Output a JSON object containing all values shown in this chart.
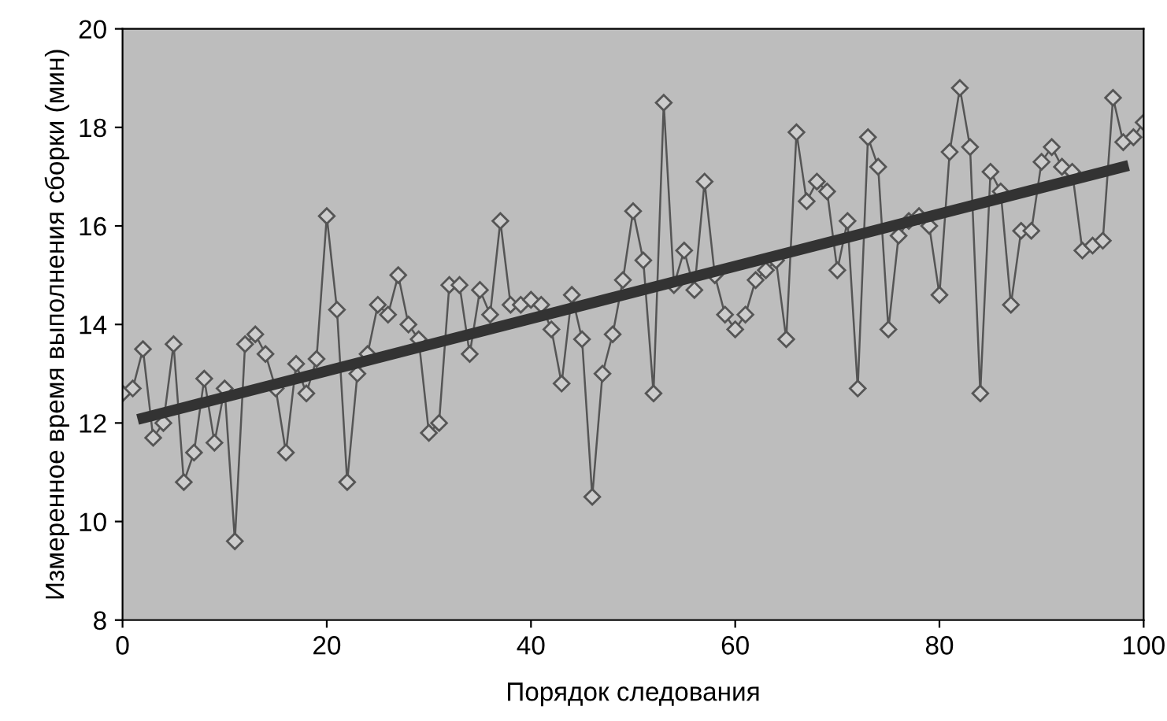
{
  "chart_data": {
    "type": "line",
    "xlabel": "Порядок следования",
    "ylabel": "Измеренное время выполнения сборки (мин)",
    "xlim": [
      0,
      100
    ],
    "ylim": [
      8,
      20
    ],
    "xticks": [
      0,
      20,
      40,
      60,
      80,
      100
    ],
    "yticks": [
      8,
      10,
      12,
      14,
      16,
      18,
      20
    ],
    "grid": false,
    "legend": false,
    "series": [
      {
        "color": "#555555",
        "marker": "diamond",
        "line_style": "solid",
        "x": [
          0,
          1,
          2,
          3,
          4,
          5,
          6,
          7,
          8,
          9,
          10,
          11,
          12,
          13,
          14,
          15,
          16,
          17,
          18,
          19,
          20,
          21,
          22,
          23,
          24,
          25,
          26,
          27,
          28,
          29,
          30,
          31,
          32,
          33,
          34,
          35,
          36,
          37,
          38,
          39,
          40,
          41,
          42,
          43,
          44,
          45,
          46,
          47,
          48,
          49,
          50,
          51,
          52,
          53,
          54,
          55,
          56,
          57,
          58,
          59,
          60,
          61,
          62,
          63,
          64,
          65,
          66,
          67,
          68,
          69,
          70,
          71,
          72,
          73,
          74,
          75,
          76,
          77,
          78,
          79,
          80,
          81,
          82,
          83,
          84,
          85,
          86,
          87,
          88,
          89,
          90,
          91,
          92,
          93,
          94,
          95,
          96,
          97,
          98,
          99,
          100
        ],
        "values": [
          12.6,
          12.7,
          13.5,
          11.7,
          12.0,
          13.6,
          10.8,
          11.4,
          12.9,
          11.6,
          12.7,
          9.6,
          13.6,
          13.8,
          13.4,
          12.7,
          11.4,
          13.2,
          12.6,
          13.3,
          16.2,
          14.3,
          10.8,
          13.0,
          13.4,
          14.4,
          14.2,
          15.0,
          14.0,
          13.7,
          11.8,
          12.0,
          14.8,
          14.8,
          13.4,
          14.7,
          14.2,
          16.1,
          14.4,
          14.4,
          14.5,
          14.4,
          13.9,
          12.8,
          14.6,
          13.7,
          10.5,
          13.0,
          13.8,
          14.9,
          16.3,
          15.3,
          12.6,
          18.5,
          14.8,
          15.5,
          14.7,
          16.9,
          15.0,
          14.2,
          13.9,
          14.2,
          14.9,
          15.1,
          15.3,
          13.7,
          17.9,
          16.5,
          16.9,
          16.7,
          15.1,
          16.1,
          12.7,
          17.8,
          17.2,
          13.9,
          15.8,
          16.1,
          16.2,
          16.0,
          14.6,
          17.5,
          18.8,
          17.6,
          12.6,
          17.1,
          16.7,
          14.4,
          15.9,
          15.9,
          17.3,
          17.6,
          17.2,
          17.1,
          15.5,
          15.6,
          15.7,
          18.6,
          17.7,
          17.8,
          18.1
        ]
      },
      {
        "color": "#333333",
        "marker": "none",
        "line_style": "solid",
        "x": [
          2,
          98
        ],
        "values": [
          12.1,
          17.2
        ]
      }
    ]
  }
}
